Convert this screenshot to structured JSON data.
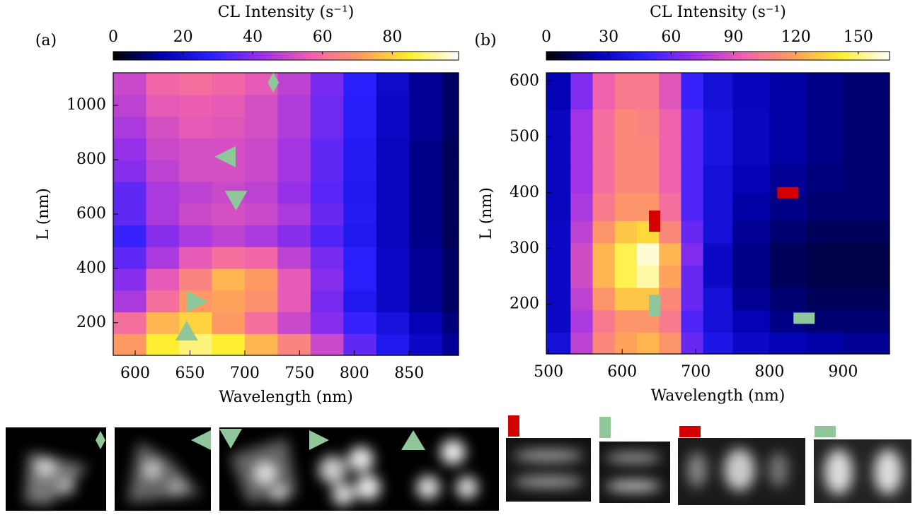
{
  "chart_data": [
    {
      "type": "heatmap",
      "panel_label": "(a)",
      "colorbar_label": "CL Intensity (s⁻¹)",
      "x_label": "Wavelength (nm)",
      "y_label": "L (nm)",
      "colormap": [
        "#000000",
        "#0000b0",
        "#2a20ff",
        "#9a30e8",
        "#f060b0",
        "#ff9c60",
        "#ffee30",
        "#ffffff"
      ],
      "xlim": [
        580,
        895
      ],
      "ylim": [
        80,
        1120
      ],
      "clim": [
        0,
        99
      ],
      "xticks": [
        600,
        650,
        700,
        750,
        800,
        850
      ],
      "yticks": [
        200,
        400,
        600,
        800,
        1000
      ],
      "cticks": [
        0,
        20,
        40,
        60,
        80
      ],
      "x": [
        580,
        610,
        640,
        670,
        700,
        730,
        760,
        790,
        820,
        850,
        880,
        895
      ],
      "y": [
        80,
        160,
        240,
        320,
        400,
        480,
        560,
        640,
        720,
        800,
        880,
        960,
        1040,
        1120
      ],
      "z": [
        [
          70,
          85,
          90,
          85,
          75,
          65,
          50,
          35,
          25,
          18,
          12
        ],
        [
          60,
          75,
          80,
          70,
          60,
          50,
          40,
          30,
          22,
          15,
          10
        ],
        [
          45,
          60,
          70,
          72,
          68,
          55,
          38,
          25,
          18,
          12,
          8
        ],
        [
          40,
          55,
          65,
          75,
          70,
          55,
          40,
          28,
          18,
          12,
          8
        ],
        [
          35,
          45,
          55,
          60,
          58,
          48,
          38,
          28,
          18,
          12,
          8
        ],
        [
          30,
          40,
          45,
          48,
          45,
          40,
          33,
          25,
          17,
          11,
          7
        ],
        [
          35,
          45,
          50,
          52,
          50,
          45,
          36,
          26,
          17,
          11,
          7
        ],
        [
          35,
          45,
          48,
          50,
          48,
          42,
          34,
          25,
          17,
          11,
          7
        ],
        [
          40,
          48,
          52,
          52,
          50,
          44,
          35,
          26,
          17,
          11,
          7
        ],
        [
          42,
          50,
          52,
          52,
          50,
          44,
          35,
          26,
          17,
          11,
          7
        ],
        [
          45,
          52,
          55,
          54,
          52,
          46,
          37,
          27,
          18,
          12,
          8
        ],
        [
          48,
          55,
          56,
          55,
          52,
          46,
          37,
          27,
          18,
          12,
          8
        ],
        [
          50,
          58,
          60,
          58,
          55,
          48,
          38,
          28,
          19,
          12,
          8
        ]
      ],
      "markers": [
        {
          "shape": "diamond",
          "x": 726,
          "y": 1084,
          "color": "#8fc79a"
        },
        {
          "shape": "triangle-left",
          "x": 682,
          "y": 811,
          "color": "#8fc79a"
        },
        {
          "shape": "triangle-down",
          "x": 692,
          "y": 649,
          "color": "#8fc79a"
        },
        {
          "shape": "triangle-right",
          "x": 657,
          "y": 278,
          "color": "#8fc79a"
        },
        {
          "shape": "triangle-up",
          "x": 647,
          "y": 171,
          "color": "#8fc79a"
        }
      ]
    },
    {
      "type": "heatmap",
      "panel_label": "(b)",
      "colorbar_label": "CL Intensity (s⁻¹)",
      "x_label": "Wavelength (nm)",
      "y_label": "L (nm)",
      "colormap": [
        "#000000",
        "#0000b0",
        "#2a20ff",
        "#9a30e8",
        "#f060b0",
        "#ff9c60",
        "#ffee30",
        "#ffffff"
      ],
      "xlim": [
        497,
        963
      ],
      "ylim": [
        111,
        615
      ],
      "clim": [
        0,
        165
      ],
      "xticks": [
        500,
        600,
        700,
        800,
        900
      ],
      "yticks": [
        200,
        300,
        400,
        500,
        600
      ],
      "cticks": [
        0,
        30,
        60,
        90,
        120,
        150
      ],
      "x": [
        497,
        530,
        560,
        590,
        620,
        650,
        680,
        710,
        750,
        800,
        850,
        900,
        963
      ],
      "y": [
        111,
        150,
        190,
        230,
        270,
        310,
        350,
        400,
        450,
        500,
        550,
        615
      ],
      "z": [
        [
          35,
          80,
          110,
          120,
          125,
          115,
          60,
          40,
          30,
          25,
          22,
          20
        ],
        [
          30,
          75,
          105,
          115,
          115,
          105,
          55,
          35,
          25,
          18,
          15,
          15
        ],
        [
          30,
          80,
          115,
          130,
          130,
          110,
          60,
          35,
          20,
          15,
          12,
          12
        ],
        [
          30,
          85,
          125,
          145,
          155,
          120,
          60,
          30,
          18,
          12,
          10,
          10
        ],
        [
          30,
          85,
          125,
          145,
          160,
          125,
          65,
          30,
          18,
          12,
          10,
          10
        ],
        [
          30,
          80,
          115,
          130,
          135,
          110,
          60,
          35,
          20,
          15,
          12,
          12
        ],
        [
          28,
          75,
          105,
          115,
          115,
          100,
          55,
          35,
          22,
          18,
          15,
          15
        ],
        [
          28,
          72,
          100,
          110,
          110,
          95,
          55,
          35,
          25,
          20,
          17,
          15
        ],
        [
          28,
          72,
          100,
          110,
          110,
          95,
          55,
          38,
          28,
          22,
          18,
          15
        ],
        [
          28,
          72,
          100,
          110,
          108,
          95,
          55,
          38,
          28,
          22,
          18,
          15
        ],
        [
          25,
          65,
          95,
          105,
          105,
          90,
          50,
          35,
          27,
          22,
          18,
          15
        ]
      ],
      "markers": [
        {
          "shape": "vbar",
          "x": 644,
          "y": 349,
          "color": "#d40000"
        },
        {
          "shape": "hbar",
          "x": 825,
          "y": 400,
          "color": "#d40000"
        },
        {
          "shape": "vbar",
          "x": 644,
          "y": 198,
          "color": "#8fc79a"
        },
        {
          "shape": "hbar",
          "x": 847,
          "y": 175,
          "color": "#8fc79a"
        }
      ]
    }
  ]
}
